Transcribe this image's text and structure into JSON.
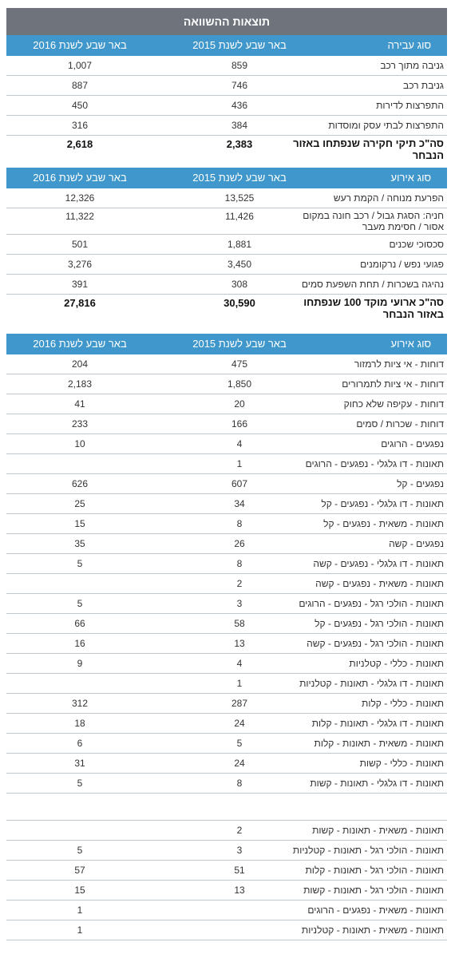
{
  "title": "תוצאות ההשוואה",
  "tables": [
    {
      "header": {
        "label": "סוג עבירה",
        "y2015": "באר שבע  לשנת 2015",
        "y2016": "באר שבע  לשנת 2016"
      },
      "rows": [
        {
          "label": "גניבה מתוך רכב",
          "y2015": "859",
          "y2016": "1,007"
        },
        {
          "label": "גניבת רכב",
          "y2015": "746",
          "y2016": "887"
        },
        {
          "label": "התפרצות לדירות",
          "y2015": "436",
          "y2016": "450"
        },
        {
          "label": "התפרצות לבתי עסק ומוסדות",
          "y2015": "384",
          "y2016": "316"
        },
        {
          "label": "סה\"כ תיקי חקירה שנפתחו באזור הנבחר",
          "y2015": "2,383",
          "y2016": "2,618"
        }
      ]
    },
    {
      "header": {
        "label": "סוג אירוע",
        "y2015": "באר שבע  לשנת 2015",
        "y2016": "באר שבע  לשנת 2016"
      },
      "rows": [
        {
          "label": "הפרעת מנוחה / הקמת רעש",
          "y2015": "13,525",
          "y2016": "12,326"
        },
        {
          "label": "חניה: הסגת גבול / רכב חונה במקום אסור / חסימת מעבר",
          "y2015": "11,426",
          "y2016": "11,322"
        },
        {
          "label": "סכסוכי שכנים",
          "y2015": "1,881",
          "y2016": "501"
        },
        {
          "label": "פגועי נפש / נרקומנים",
          "y2015": "3,450",
          "y2016": "3,276"
        },
        {
          "label": "נהיגה בשכרות / תחת השפעת סמים",
          "y2015": "308",
          "y2016": "391"
        },
        {
          "label": "סה\"כ ארועי מוקד 100 שנפתחו באזור הנבחר",
          "y2015": "30,590",
          "y2016": "27,816"
        }
      ]
    },
    {
      "header": {
        "label": "סוג אירוע",
        "y2015": "באר שבע  לשנת 2015",
        "y2016": "באר שבע  לשנת 2016"
      },
      "rows": [
        {
          "label": "דוחות - אי ציות לרמזור",
          "y2015": "475",
          "y2016": "204"
        },
        {
          "label": "דוחות - אי ציות לתמרורים",
          "y2015": "1,850",
          "y2016": "2,183"
        },
        {
          "label": "דוחות - עקיפה שלא כחוק",
          "y2015": "20",
          "y2016": "41"
        },
        {
          "label": "דוחות - שכרות / סמים",
          "y2015": "166",
          "y2016": "233"
        },
        {
          "label": "נפגעים - הרוגים",
          "y2015": "4",
          "y2016": "10"
        },
        {
          "label": "תאונות - דו גלגלי - נפגעים - הרוגים",
          "y2015": "1",
          "y2016": ""
        },
        {
          "label": "נפגעים - קל",
          "y2015": "607",
          "y2016": "626"
        },
        {
          "label": "תאונות - דו גלגלי - נפגעים - קל",
          "y2015": "34",
          "y2016": "25"
        },
        {
          "label": "תאונות - משאית - נפגעים - קל",
          "y2015": "8",
          "y2016": "15"
        },
        {
          "label": "נפגעים - קשה",
          "y2015": "26",
          "y2016": "35"
        },
        {
          "label": "תאונות - דו גלגלי - נפגעים - קשה",
          "y2015": "8",
          "y2016": "5"
        },
        {
          "label": "תאונות - משאית - נפגעים - קשה",
          "y2015": "2",
          "y2016": ""
        },
        {
          "label": "תאונות - הולכי רגל - נפגעים - הרוגים",
          "y2015": "3",
          "y2016": "5"
        },
        {
          "label": "תאונות - הולכי רגל - נפגעים - קל",
          "y2015": "58",
          "y2016": "66"
        },
        {
          "label": "תאונות - הולכי רגל - נפגעים - קשה",
          "y2015": "13",
          "y2016": "16"
        },
        {
          "label": "תאונות - כללי - קטלניות",
          "y2015": "4",
          "y2016": "9"
        },
        {
          "label": "תאונות - דו גלגלי - תאונות - קטלניות",
          "y2015": "1",
          "y2016": ""
        },
        {
          "label": "תאונות - כללי - קלות",
          "y2015": "287",
          "y2016": "312"
        },
        {
          "label": "תאונות - דו גלגלי - תאונות - קלות",
          "y2015": "24",
          "y2016": "18"
        },
        {
          "label": "תאונות - משאית - תאונות - קלות",
          "y2015": "5",
          "y2016": "6"
        },
        {
          "label": "תאונות - כללי - קשות",
          "y2015": "24",
          "y2016": "31"
        },
        {
          "label": "תאונות - דו גלגלי - תאונות - קשות",
          "y2015": "8",
          "y2016": "5"
        },
        {
          "label": "",
          "y2015": "",
          "y2016": ""
        },
        {
          "label": "תאונות - משאית - תאונות - קשות",
          "y2015": "2",
          "y2016": ""
        },
        {
          "label": "תאונות - הולכי רגל - תאונות - קטלניות",
          "y2015": "3",
          "y2016": "5"
        },
        {
          "label": "תאונות - הולכי רגל - תאונות - קלות",
          "y2015": "51",
          "y2016": "57"
        },
        {
          "label": "תאונות - הולכי רגל - תאונות - קשות",
          "y2015": "13",
          "y2016": "15"
        },
        {
          "label": "תאונות - משאית - נפגעים - הרוגים",
          "y2015": "",
          "y2016": "1"
        },
        {
          "label": "תאונות - משאית - תאונות - קטלניות",
          "y2015": "",
          "y2016": "1"
        }
      ]
    }
  ]
}
